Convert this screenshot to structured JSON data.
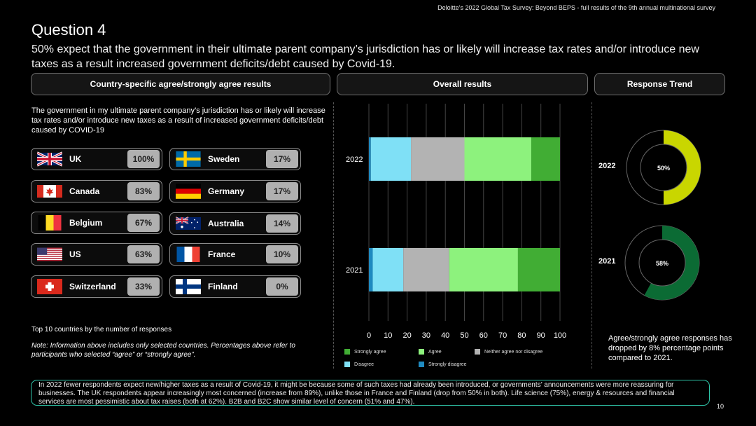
{
  "header_note": "Deloitte’s 2022 Global Tax Survey: Beyond BEPS  - full results of the 9th annual multinational survey",
  "question_title": "Question 4",
  "question_subtitle": "50% expect that the government in their ultimate parent company’s jurisdiction has or likely will increase tax rates and/or introduce new taxes as a result increased government deficits/debt caused by Covid-19.",
  "panels": {
    "country": "Country-specific agree/strongly agree results",
    "overall": "Overall results",
    "trend": "Response Trend"
  },
  "country_description": "The government in my ultimate parent company’s jurisdiction has or likely will increase tax rates and/or introduce new taxes as a result of increased government deficits/debt caused by COVID-19",
  "countries_left": [
    {
      "name": "UK",
      "value": "100%",
      "flag": "uk-flag"
    },
    {
      "name": "Canada",
      "value": "83%",
      "flag": "canada-flag"
    },
    {
      "name": "Belgium",
      "value": "67%",
      "flag": "belgium-flag"
    },
    {
      "name": "US",
      "value": "63%",
      "flag": "us-flag"
    },
    {
      "name": "Switzerland",
      "value": "33%",
      "flag": "switzerland-flag"
    }
  ],
  "countries_right": [
    {
      "name": "Sweden",
      "value": "17%",
      "flag": "sweden-flag"
    },
    {
      "name": "Germany",
      "value": "17%",
      "flag": "germany-flag"
    },
    {
      "name": "Australia",
      "value": "14%",
      "flag": "australia-flag"
    },
    {
      "name": "France",
      "value": "10%",
      "flag": "france-flag"
    },
    {
      "name": "Finland",
      "value": "0%",
      "flag": "finland-flag"
    }
  ],
  "top10_label": "Top 10 countries by the number of responses",
  "note": "Note: Information above includes only selected countries. Percentages above refer to participants who selected “agree” or “strongly agree”.",
  "chart_data": [
    {
      "type": "bar",
      "orientation": "horizontal-stacked",
      "categories": [
        "2022",
        "2021"
      ],
      "series": [
        {
          "name": "Strongly disagree",
          "values": [
            1,
            2
          ],
          "color": "#1f8ac0"
        },
        {
          "name": "Disagree",
          "values": [
            21,
            16
          ],
          "color": "#7fe0f6"
        },
        {
          "name": "Neither agree nor disagree",
          "values": [
            28,
            24
          ],
          "color": "#b3b3b3"
        },
        {
          "name": "Agree",
          "values": [
            35,
            36
          ],
          "color": "#8df27d"
        },
        {
          "name": "Strongly agree",
          "values": [
            15,
            22
          ],
          "color": "#41ad34"
        }
      ],
      "xlim": [
        0,
        100
      ],
      "xticks": [
        0,
        10,
        20,
        30,
        40,
        50,
        60,
        70,
        80,
        90,
        100
      ],
      "grid": true,
      "legend_order": [
        "Strongly agree",
        "Agree",
        "Neither agree nor disagree",
        "Disagree",
        "Strongly disagree"
      ]
    },
    {
      "type": "pie",
      "donuts": [
        {
          "label": "2022",
          "value": 50,
          "value_label": "50%",
          "color": "#c9d600"
        },
        {
          "label": "2021",
          "value": 58,
          "value_label": "58%",
          "color": "#0b6b34"
        }
      ]
    }
  ],
  "trend_note": "Agree/strongly agree responses has dropped by 8% percentage points compared to 2021.",
  "footer": "In 2022 fewer respondents expect new/higher taxes as a result of Covid-19, it might be because some of such taxes had already been introduced, or governments’ announcements were more reassuring for businesses. The UK respondents appear increasingly most concerned (increase from 89%), unlike those in France and Finland (drop from 50% in both). Life science (75%), energy & resources and financial services are most pessimistic about tax raises (both at 62%). B2B and B2C show similar level of concern (51% and 47%).",
  "page_number": "10"
}
